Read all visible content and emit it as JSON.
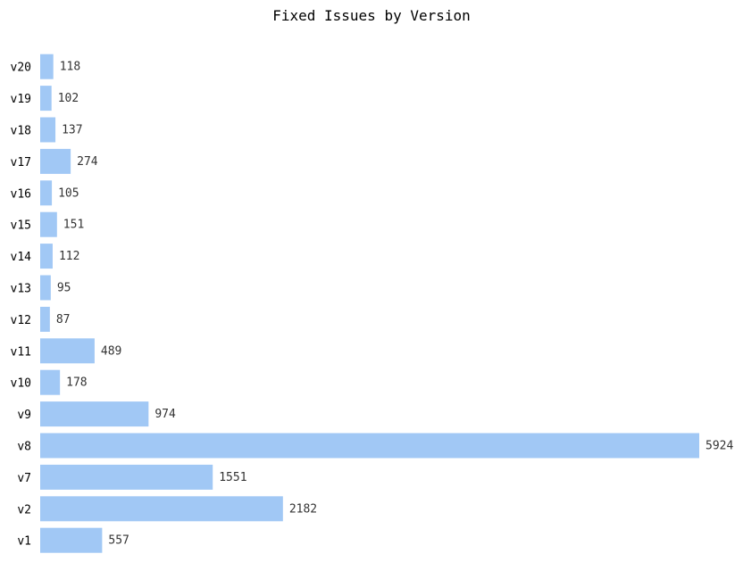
{
  "chart_data": {
    "type": "bar",
    "orientation": "horizontal",
    "title": "Fixed Issues by Version",
    "xlabel": "",
    "ylabel": "",
    "categories": [
      "v1",
      "v2",
      "v7",
      "v8",
      "v9",
      "v10",
      "v11",
      "v12",
      "v13",
      "v14",
      "v15",
      "v16",
      "v17",
      "v18",
      "v19",
      "v20"
    ],
    "values": [
      557,
      2182,
      1551,
      5924,
      974,
      178,
      489,
      87,
      95,
      112,
      151,
      105,
      274,
      137,
      102,
      118
    ],
    "xlim": [
      0,
      5924
    ],
    "bar_color": "#a1c8f5",
    "grid": false,
    "legend": "none",
    "data_labels": true
  }
}
